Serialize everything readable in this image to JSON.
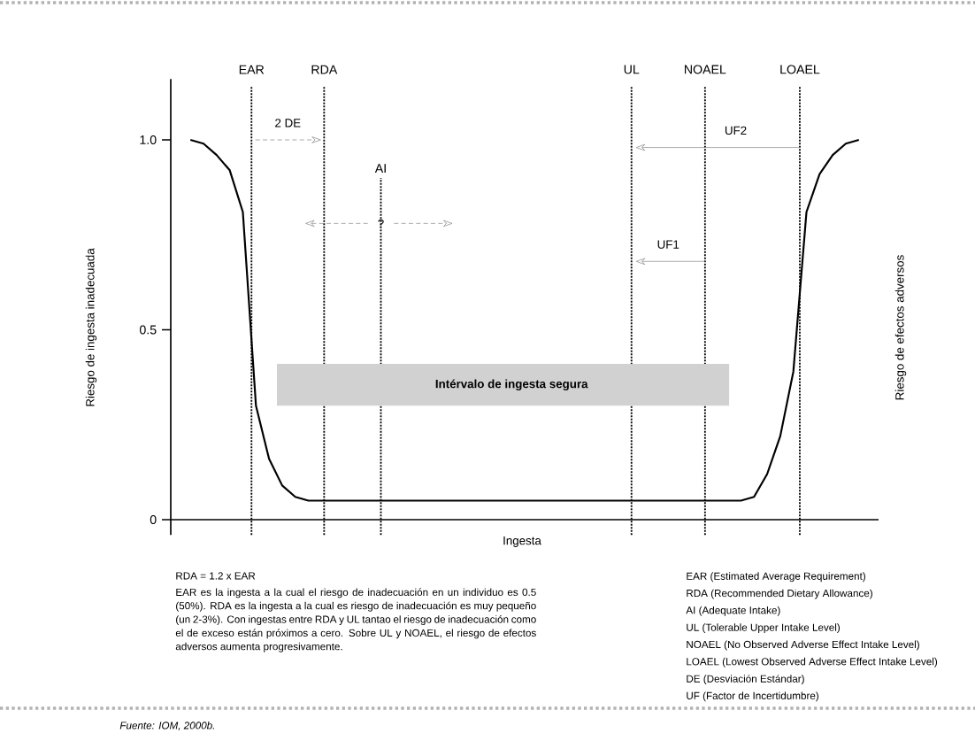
{
  "chart_data": {
    "type": "line",
    "ylabel": "Riesgo de ingesta inadecuada",
    "y2label": "Riesgo de efectos adversos",
    "xlabel": "Ingesta",
    "categories": [
      null,
      null,
      null,
      null,
      null,
      null,
      null,
      null,
      null,
      null,
      null,
      null,
      null,
      null,
      null,
      null,
      null,
      null,
      null,
      null,
      null,
      null,
      null,
      null,
      null,
      null,
      null,
      null,
      null,
      null,
      null,
      null,
      null,
      null,
      null,
      null,
      null,
      null,
      null,
      null,
      null,
      null,
      null,
      null,
      null,
      null,
      null,
      null,
      null,
      null,
      null,
      null,
      null,
      null
    ],
    "values": [
      null,
      1.0,
      0.99,
      0.96,
      0.92,
      0.81,
      0.3,
      0.16,
      0.09,
      0.06,
      0.05,
      0.05,
      0.05,
      0.05,
      0.05,
      0.05,
      0.05,
      0.05,
      0.05,
      0.05,
      0.05,
      0.05,
      0.05,
      0.05,
      0.05,
      0.05,
      0.05,
      0.05,
      0.05,
      0.05,
      0.05,
      0.05,
      0.05,
      0.05,
      0.05,
      0.05,
      0.05,
      0.05,
      0.05,
      0.05,
      0.05,
      0.05,
      0.05,
      0.05,
      0.06,
      0.12,
      0.22,
      0.39,
      0.81,
      0.91,
      0.96,
      0.99,
      1.0,
      null
    ],
    "color": "#000000",
    "ylim": [
      -0.04,
      1.16
    ],
    "yticks": [
      0,
      0.5,
      {
        "value": 1,
        "label": "1.0"
      }
    ],
    "tick_labels": "y",
    "annotations": [
      "EAR",
      "RDA",
      "AI",
      "UL",
      "NOAEL",
      "LOAEL",
      "2 DE",
      "?",
      "UF1",
      "UF2",
      "Intérvalo de ingesta segura",
      "RDA = 1.2 x EAR",
      "EAR es la ingesta a la cual el riesgo de inadecuación en un individuo es 0.5 (50%). RDA es la ingesta a la cual es riesgo de inadecuación es muy pequeño (un 2-3%). Con ingestas entre RDA y UL tantao el riesgo de inadecuación como el de exceso están próximos a cero. Sobre UL y NOAEL, el riesgo de efectos adversos aumenta progresivamente.",
      "EAR (Estimated Average Requirement)",
      "RDA (Recommended Dietary Allowance)",
      "AI (Adequate Intake)",
      "UL (Tolerable Upper Intake Level)",
      "NOAEL (No Observed Adverse Effect Intake Level)",
      "LOAEL (Lowest Observed Adverse Effect Intake Level)",
      "DE (Desviación Estándar)",
      "UF (Factor de Incertidumbre)",
      "Fuente: IOM, 2000b."
    ]
  }
}
